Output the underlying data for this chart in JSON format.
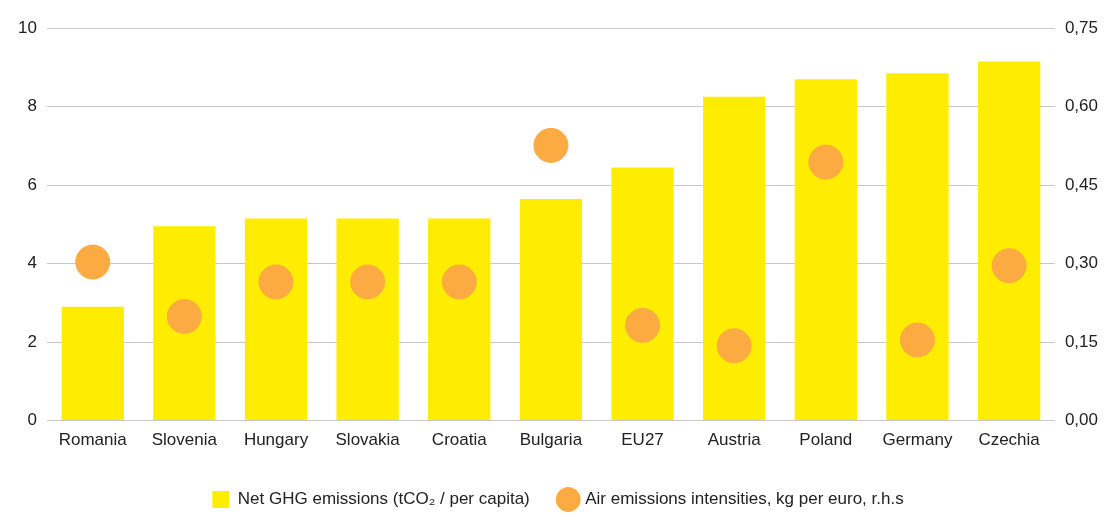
{
  "chart_data": {
    "type": "bar",
    "categories": [
      "Romania",
      "Slovenia",
      "Hungary",
      "Slovakia",
      "Croatia",
      "Bulgaria",
      "EU27",
      "Austria",
      "Poland",
      "Germany",
      "Czechia"
    ],
    "series": [
      {
        "name": "Net GHG emissions (tCO₂ / per capita)",
        "color": "#ffed00",
        "values": [
          2.9,
          4.95,
          5.15,
          5.15,
          5.15,
          5.65,
          6.45,
          8.25,
          8.7,
          8.85,
          9.15
        ]
      },
      {
        "name": "Air emissions intensities, kg per euro, r.h.s",
        "type": "scatter",
        "axis": "y2",
        "color": "#fbab42",
        "values": [
          0.303,
          0.199,
          0.265,
          0.265,
          0.265,
          0.526,
          0.182,
          0.143,
          0.494,
          0.154,
          0.296
        ]
      }
    ],
    "ylim": [
      0,
      10
    ],
    "yticks": [
      0,
      2,
      4,
      6,
      8,
      10
    ],
    "y2lim": [
      0,
      0.75
    ],
    "y2ticks": [
      {
        "value": 0,
        "label": "0,00"
      },
      {
        "value": 0.15,
        "label": "0,15"
      },
      {
        "value": 0.3,
        "label": "0,30"
      },
      {
        "value": 0.45,
        "label": "0,45"
      },
      {
        "value": 0.6,
        "label": "0,60"
      },
      {
        "value": 0.75,
        "label": "0,75"
      }
    ],
    "grid": "y",
    "legend": "bottom",
    "marker": "circle"
  }
}
